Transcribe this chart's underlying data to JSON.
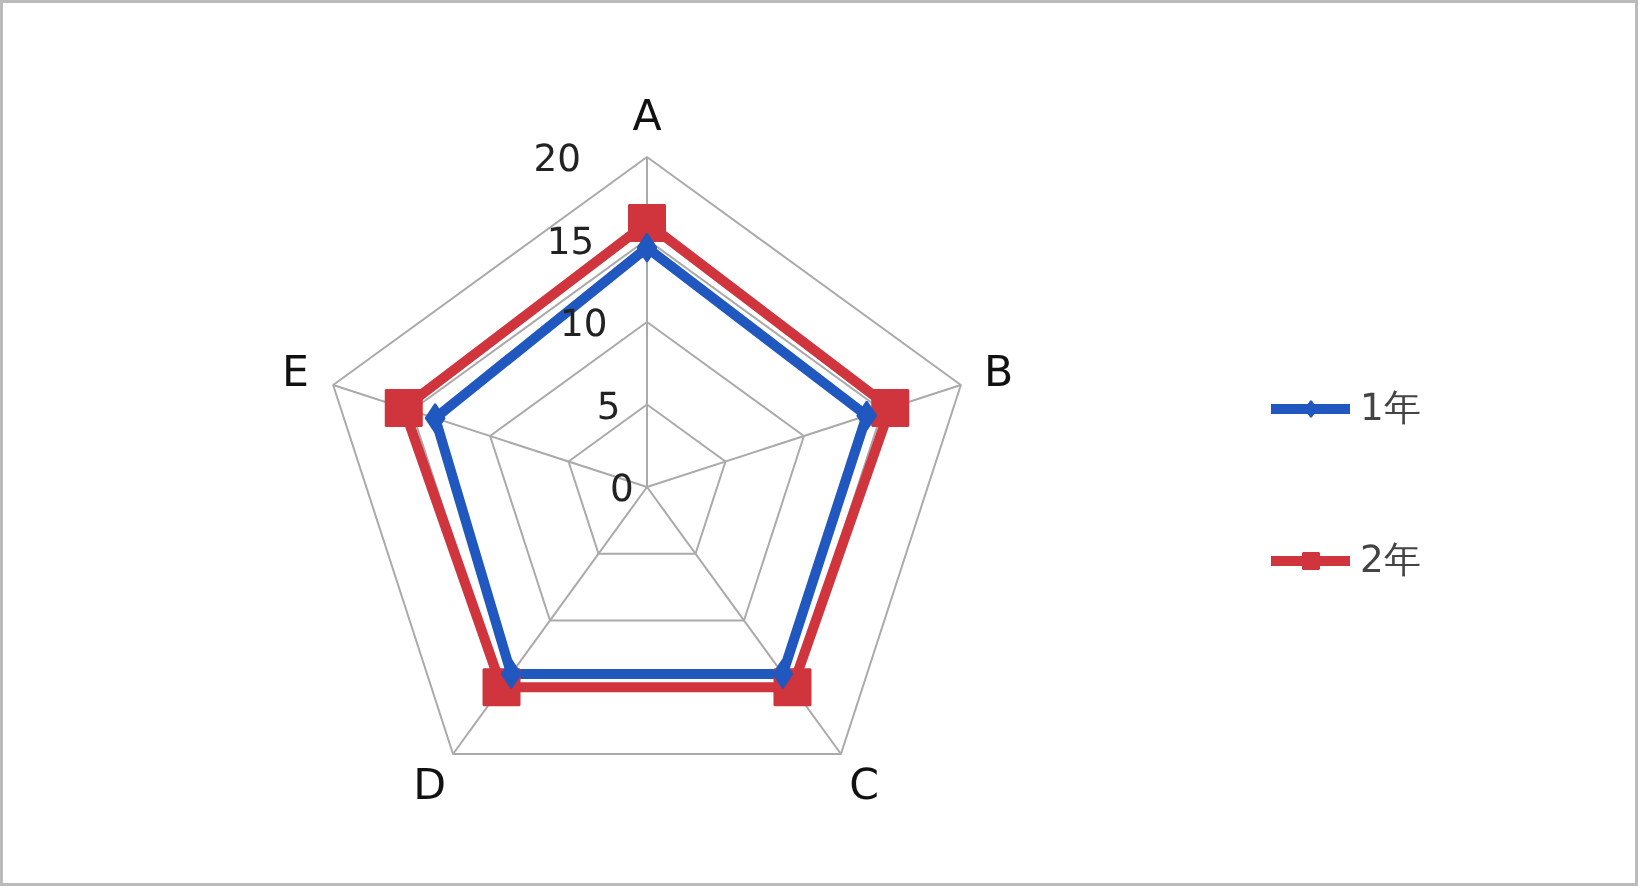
{
  "chart_data": {
    "type": "radar",
    "categories": [
      "A",
      "B",
      "C",
      "D",
      "E"
    ],
    "series": [
      {
        "name": "1年",
        "color": "#2058c0",
        "values": [
          14.5,
          14,
          14,
          14,
          13.5
        ],
        "marker": "diamond"
      },
      {
        "name": "2年",
        "color": "#d0343c",
        "values": [
          16,
          15.5,
          15,
          15,
          15.5
        ],
        "marker": "square"
      }
    ],
    "ylim": [
      0,
      20
    ],
    "yticks": [
      0,
      5,
      10,
      15,
      20
    ],
    "grid": true,
    "legend": "right"
  }
}
